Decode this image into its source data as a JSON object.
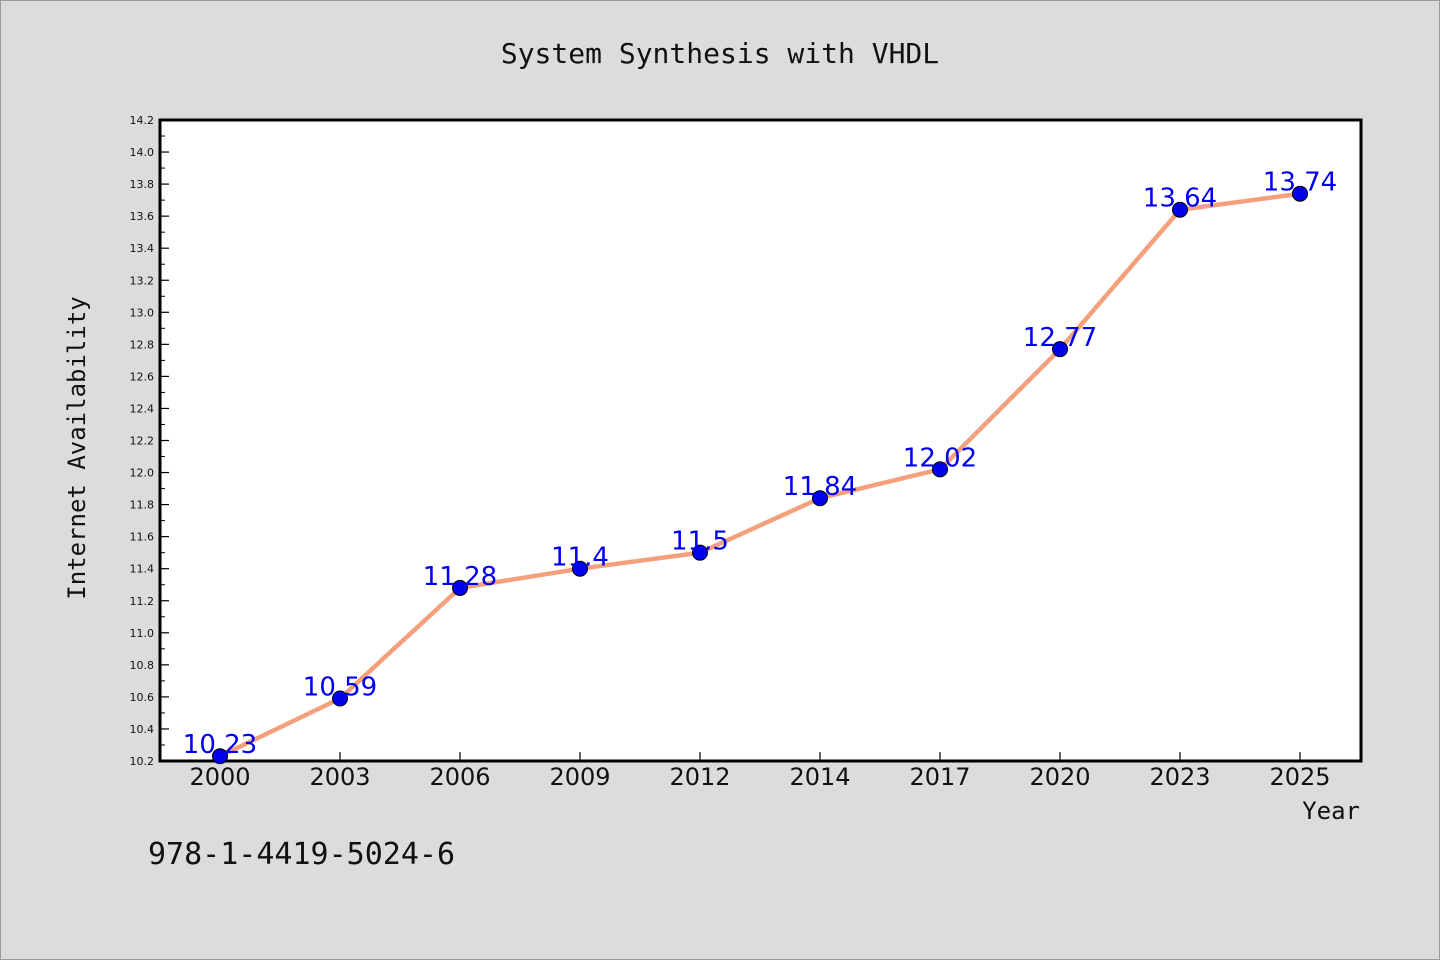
{
  "chart_data": {
    "type": "line",
    "title": "System Synthesis with VHDL",
    "xlabel": "Year",
    "ylabel": "Internet Availability",
    "categories": [
      "2000",
      "2003",
      "2006",
      "2009",
      "2012",
      "2014",
      "2017",
      "2020",
      "2023",
      "2025"
    ],
    "series": [
      {
        "values": [
          10.23,
          10.59,
          11.28,
          11.4,
          11.5,
          11.84,
          12.02,
          12.77,
          13.64,
          13.74
        ],
        "labels": [
          "10.23",
          "10.59",
          "11.28",
          "11.4",
          "11.5",
          "11.84",
          "12.02",
          "12.77",
          "13.64",
          "13.74"
        ]
      }
    ],
    "ylim": [
      10.2,
      14.2
    ],
    "yticks": [
      "10.2",
      "10.4",
      "10.6",
      "10.8",
      "11.0",
      "11.2",
      "11.4",
      "11.6",
      "11.8",
      "12.0",
      "12.2",
      "12.4",
      "12.6",
      "12.8",
      "13.0",
      "13.2",
      "13.4",
      "13.6",
      "13.8",
      "14.0",
      "14.2"
    ],
    "grid": false,
    "line_color": "#f4a07c",
    "marker_color": "#0000ee",
    "label_color": "#0000ee"
  },
  "footer_text": "978-1-4419-5024-6"
}
